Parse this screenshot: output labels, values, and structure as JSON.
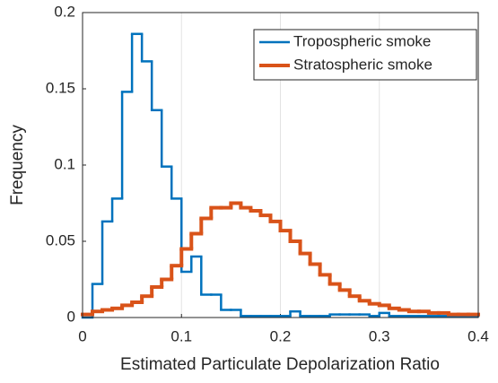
{
  "chart_data": {
    "type": "histogram",
    "xlabel": "Estimated Particulate Depolarization Ratio",
    "ylabel": "Frequency",
    "bins": [
      0,
      0.01,
      0.02,
      0.03,
      0.04,
      0.05,
      0.06,
      0.07,
      0.08,
      0.09,
      0.1,
      0.11,
      0.12,
      0.13,
      0.14,
      0.15,
      0.16,
      0.17,
      0.18,
      0.19,
      0.2,
      0.21,
      0.22,
      0.23,
      0.24,
      0.25,
      0.26,
      0.27,
      0.28,
      0.29,
      0.3,
      0.31,
      0.32,
      0.33,
      0.34,
      0.35,
      0.36,
      0.37,
      0.38,
      0.39,
      0.4
    ],
    "series": [
      {
        "name": "Tropospheric smoke",
        "color": "#0072bd",
        "values": [
          0,
          0.022,
          0.063,
          0.078,
          0.148,
          0.186,
          0.168,
          0.136,
          0.099,
          0.078,
          0.03,
          0.04,
          0.015,
          0.015,
          0.005,
          0.005,
          0.001,
          0.001,
          0.001,
          0.001,
          0.001,
          0.004,
          0.001,
          0.001,
          0.001,
          0.002,
          0.002,
          0.002,
          0.002,
          0.001,
          0.003,
          0.001,
          0.001,
          0.001,
          0.001,
          0.001,
          0.001,
          0.001,
          0.001,
          0.001
        ]
      },
      {
        "name": "Stratospheric smoke",
        "color": "#d95319",
        "values": [
          0.002,
          0.004,
          0.005,
          0.006,
          0.008,
          0.01,
          0.014,
          0.02,
          0.025,
          0.034,
          0.045,
          0.055,
          0.065,
          0.072,
          0.072,
          0.075,
          0.072,
          0.07,
          0.067,
          0.063,
          0.057,
          0.05,
          0.042,
          0.035,
          0.028,
          0.022,
          0.018,
          0.014,
          0.011,
          0.009,
          0.008,
          0.006,
          0.005,
          0.004,
          0.004,
          0.003,
          0.003,
          0.002,
          0.002,
          0.002
        ]
      }
    ],
    "xlim": [
      0,
      0.4
    ],
    "xticks": [
      0,
      0.1,
      0.2,
      0.3,
      0.4
    ],
    "ylim": [
      0,
      0.2
    ],
    "yticks": [
      0,
      0.05,
      0.1,
      0.15,
      0.2
    ],
    "grid": "x",
    "legend": "northeast"
  }
}
